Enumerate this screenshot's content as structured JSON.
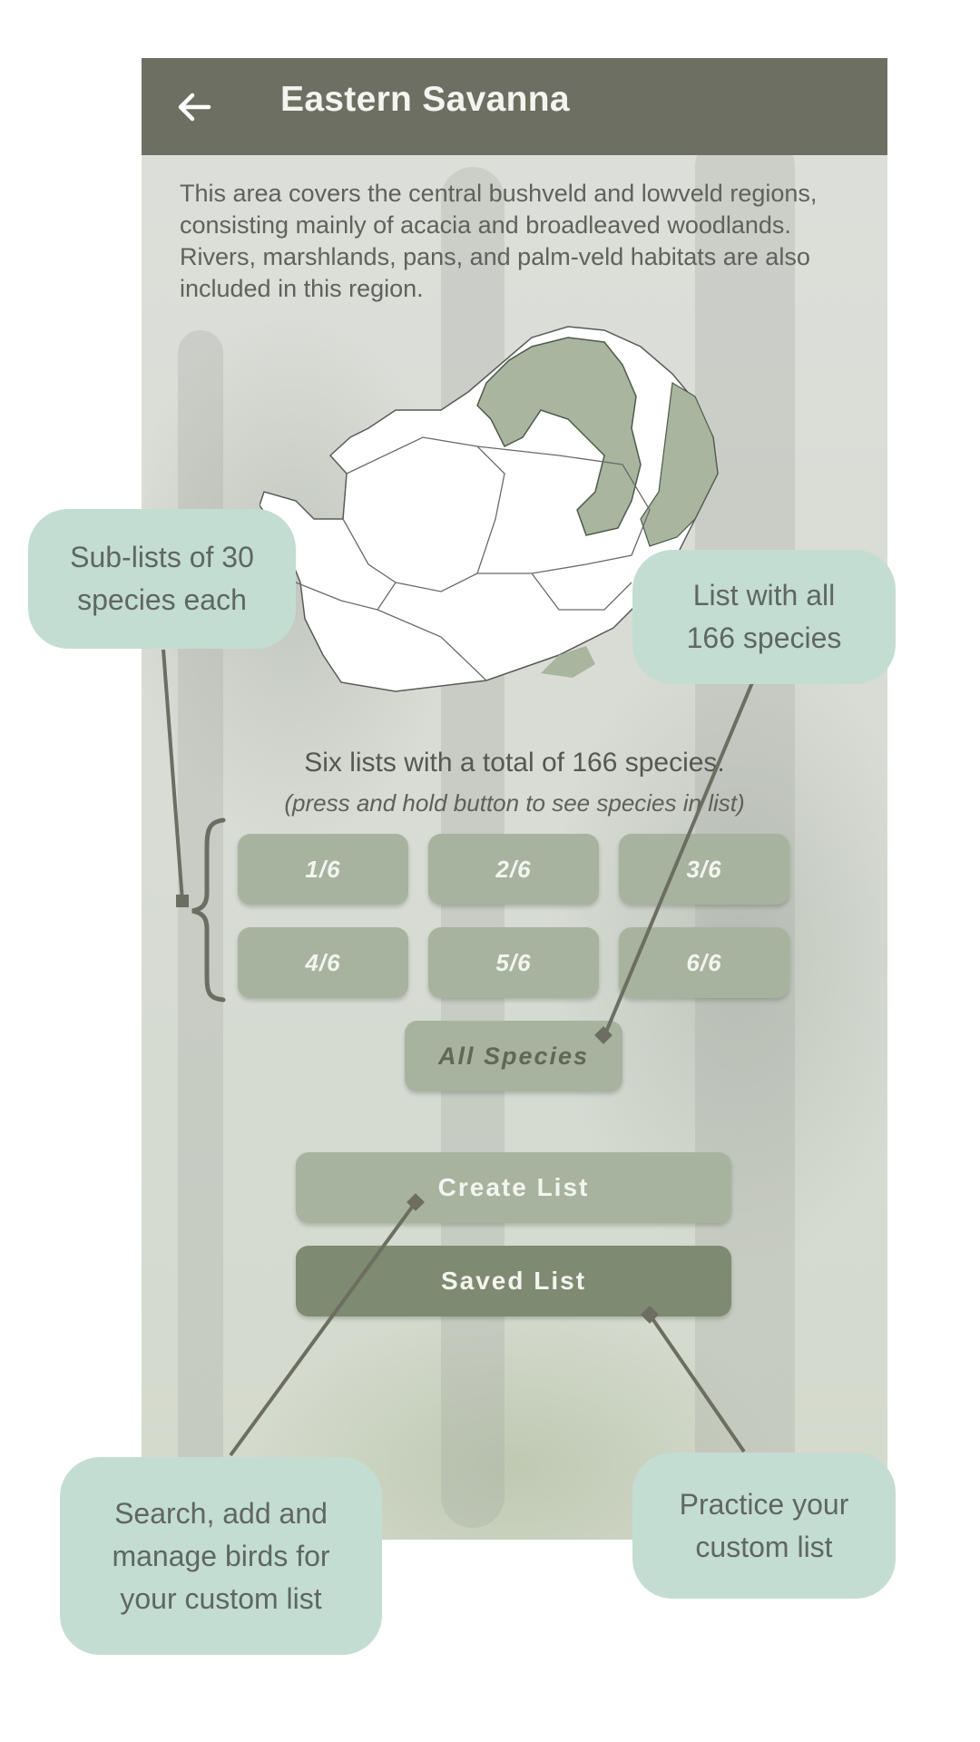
{
  "app_bar": {
    "title": "Eastern Savanna",
    "back_icon": "arrow-left-icon"
  },
  "description": "This area covers the central bushveld and lowveld regions, consisting mainly of acacia and broadleaved woodlands. Rivers, marshlands, pans, and palm-veld habitats are also included in this region.",
  "summary": "Six lists with a total of 166 species.",
  "hint": "(press and hold button to see species in list)",
  "sub_lists": [
    "1/6",
    "2/6",
    "3/6",
    "4/6",
    "5/6",
    "6/6"
  ],
  "all_species_label": "All Species",
  "create_list_label": "Create List",
  "saved_list_label": "Saved List",
  "callouts": {
    "sub_lists": "Sub-lists of 30 species each",
    "all_species": "List with all 166 species",
    "create_list": "Search, add and manage birds for your custom list",
    "saved_list": "Practice your custom list"
  },
  "colors": {
    "app_bar": "#6d6f62",
    "button_light": "#a7b39f",
    "button_dark": "#7e8a71",
    "callout": "#c4ddd3",
    "region_highlight": "#a8b59f"
  }
}
